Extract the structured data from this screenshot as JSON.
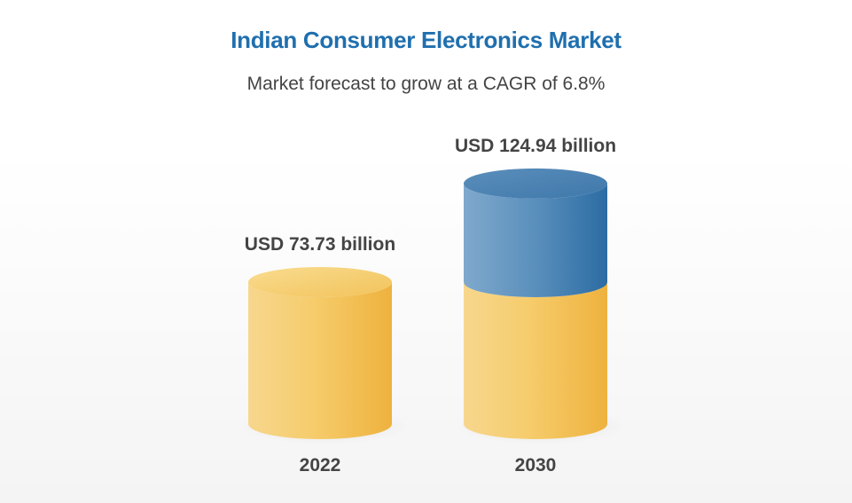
{
  "title": "Indian Consumer Electronics Market",
  "subtitle": "Market forecast to grow at a CAGR of 6.8%",
  "colors": {
    "title": "#1f6fae",
    "base_segment": "#f4c55e",
    "growth_segment": "#2f74a8",
    "label": "#444444"
  },
  "chart_data": {
    "type": "bar",
    "style": "3d-cylinder",
    "title": "Indian Consumer Electronics Market",
    "subtitle": "Market forecast to grow at a CAGR of 6.8%",
    "categories": [
      "2022",
      "2030"
    ],
    "values": [
      73.73,
      124.94
    ],
    "unit": "USD billion",
    "data_labels": [
      "USD 73.73 billion",
      "USD 124.94 billion"
    ],
    "cagr_percent": 6.8,
    "grid": false,
    "legend": "none"
  }
}
